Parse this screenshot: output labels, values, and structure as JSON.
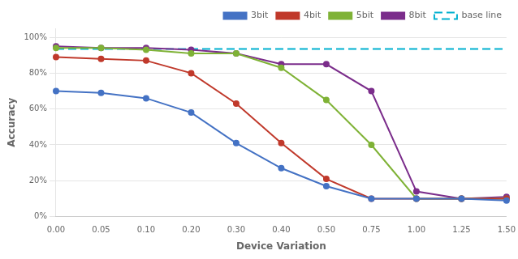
{
  "chart_data": {
    "type": "line",
    "x_label": "Device Variation",
    "y_label": "Accuracy",
    "categories": [
      "0.00",
      "0.05",
      "0.10",
      "0.20",
      "0.30",
      "0.40",
      "0.50",
      "0.75",
      "1.00",
      "1.25",
      "1.50"
    ],
    "series": [
      {
        "name": "3bit",
        "color": "#4472C4",
        "values": [
          0.7,
          0.69,
          0.66,
          0.58,
          0.41,
          0.27,
          0.17,
          0.1,
          0.1,
          0.1,
          0.09
        ]
      },
      {
        "name": "4bit",
        "color": "#C0392B",
        "values": [
          0.89,
          0.88,
          0.87,
          0.8,
          0.63,
          0.41,
          0.21,
          0.1,
          0.1,
          0.1,
          0.1
        ]
      },
      {
        "name": "5bit",
        "color": "#7FB236",
        "values": [
          0.94,
          0.94,
          0.93,
          0.91,
          0.91,
          0.83,
          0.65,
          0.4,
          0.1,
          0.1,
          0.1
        ]
      },
      {
        "name": "8bit",
        "color": "#7B2D8B",
        "values": [
          0.95,
          0.94,
          0.94,
          0.93,
          0.91,
          0.85,
          0.85,
          0.7,
          0.14,
          0.1,
          0.11
        ]
      }
    ],
    "baseline": {
      "value": 0.935,
      "name": "base line",
      "color": "#00B0D0",
      "line_style": "dashed"
    },
    "marker": "circle",
    "ylim": [
      0.0,
      1.05
    ],
    "yticks": [
      {
        "value": 0.0,
        "label": "0%"
      },
      {
        "value": 0.2,
        "label": "20%"
      },
      {
        "value": 0.4,
        "label": "40%"
      },
      {
        "value": 0.6,
        "label": "60%"
      },
      {
        "value": 0.8,
        "label": "80%"
      },
      {
        "value": 1.0,
        "label": "100%"
      }
    ],
    "grid": "y",
    "legend": "upper right"
  }
}
